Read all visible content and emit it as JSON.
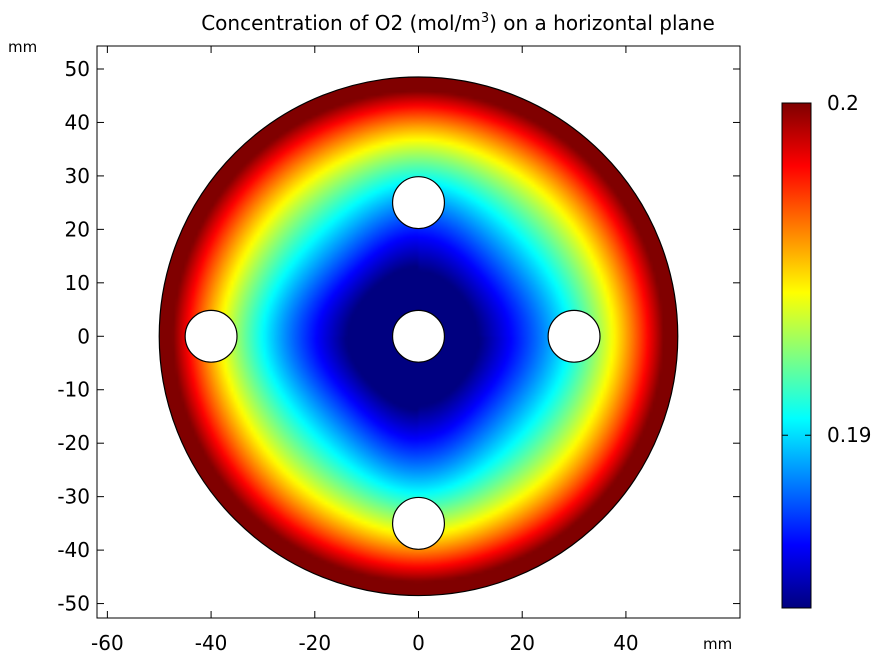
{
  "chart_data": {
    "type": "heatmap",
    "title": {
      "main": "Concentration of O2 (mol/m",
      "sup": "3",
      "tail": ") on a horizontal plane"
    },
    "x_unit_label": "mm",
    "y_unit_label": "mm",
    "xlim": [
      -62,
      62
    ],
    "ylim": [
      -52.7,
      54.3
    ],
    "x_ticks": [
      -60,
      -40,
      -20,
      0,
      20,
      40
    ],
    "x_tick_labels": [
      "-60",
      "-40",
      "-20",
      "0",
      "20",
      "40"
    ],
    "y_ticks": [
      50,
      40,
      30,
      20,
      10,
      0,
      -10,
      -20,
      -30,
      -40,
      -50
    ],
    "y_tick_labels": [
      "50",
      "40",
      "30",
      "20",
      "10",
      "0",
      "-10",
      "-20",
      "-30",
      "-40",
      "-50"
    ],
    "domain": {
      "shape": "circle",
      "center": [
        0,
        0
      ],
      "radius": 50
    },
    "holes": [
      {
        "name": "top",
        "center": [
          0,
          25
        ],
        "radius": 5
      },
      {
        "name": "center",
        "center": [
          0,
          0
        ],
        "radius": 5
      },
      {
        "name": "left",
        "center": [
          -40,
          0
        ],
        "radius": 5
      },
      {
        "name": "right",
        "center": [
          30,
          0
        ],
        "radius": 5
      },
      {
        "name": "bottom",
        "center": [
          0,
          -35
        ],
        "radius": 5
      }
    ],
    "colorbar": {
      "colormap": "jet",
      "range": [
        0.1848,
        0.2
      ],
      "tick_values": [
        0.2,
        0.19
      ],
      "tick_labels": [
        "0.2",
        "0.19"
      ]
    }
  }
}
